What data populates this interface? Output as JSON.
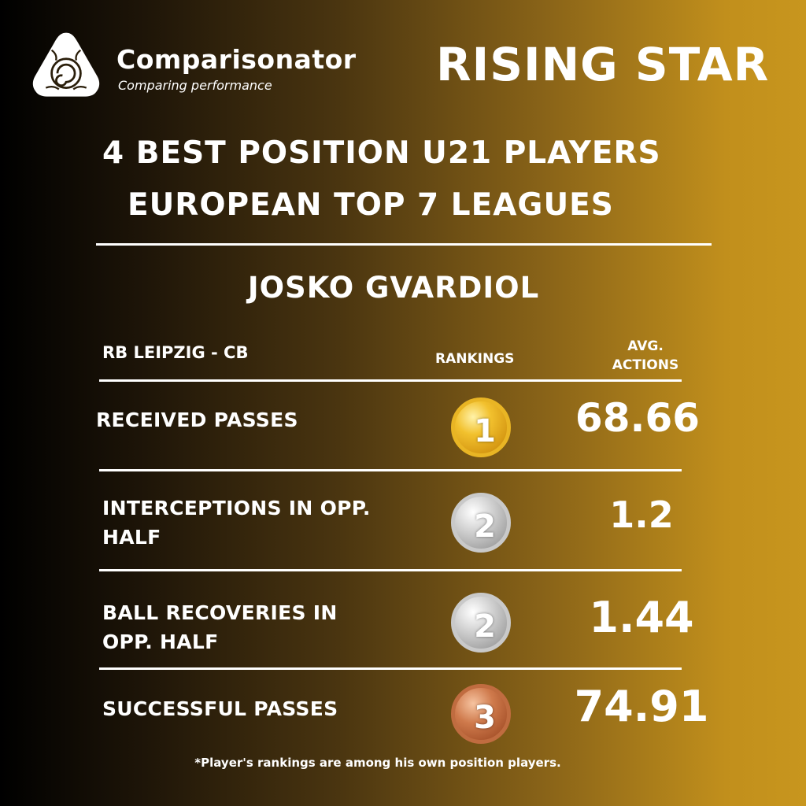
{
  "brand": {
    "name": "Comparisonator",
    "tagline": "Comparing performance",
    "badge": "RISING STAR"
  },
  "title": {
    "line1": "4 BEST POSITION U21 PLAYERS",
    "line2": "EUROPEAN TOP 7 LEAGUES"
  },
  "player": {
    "name": "JOSKO GVARDIOL",
    "club_position": "RB LEIPZIG - CB"
  },
  "table": {
    "rankings_header": "RANKINGS",
    "avg_header_line1": "AVG.",
    "avg_header_line2": "ACTIONS",
    "rows": [
      {
        "label_line1": "RECEIVED PASSES",
        "label_line2": "",
        "rank": "1",
        "medal": "gold",
        "value": "68.66"
      },
      {
        "label_line1": "INTERCEPTIONS IN OPP.",
        "label_line2": "HALF",
        "rank": "2",
        "medal": "silver",
        "value": "1.2"
      },
      {
        "label_line1": "BALL RECOVERIES IN",
        "label_line2": "OPP. HALF",
        "rank": "2",
        "medal": "silver",
        "value": "1.44"
      },
      {
        "label_line1": "SUCCESSFUL PASSES",
        "label_line2": "",
        "rank": "3",
        "medal": "bronze",
        "value": "74.91"
      }
    ]
  },
  "footnote": "*Player's rankings are among his own position players.",
  "colors": {
    "gradient_left": "#000000",
    "gradient_right": "#c8961e",
    "text": "#ffffff"
  }
}
